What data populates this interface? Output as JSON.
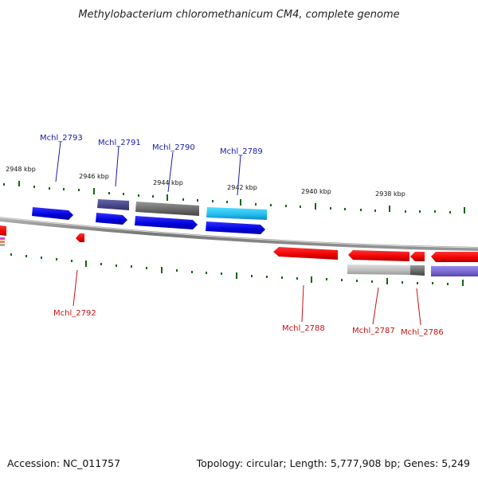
{
  "title": "Methylobacterium chloromethanicum CM4, complete genome",
  "accession": "Accession: NC_011757",
  "summary": "Topology: circular; Length: 5,777,908 bp; Genes: 5,249",
  "colors": {
    "forward_label": "#1a1aaa",
    "reverse_label": "#cc1111",
    "blue_gene": "#1111ee",
    "red_gene": "#ee1111",
    "slate_gene": "#555599",
    "gray_gene": "#777777",
    "cyan_gene": "#22bbee",
    "light_gray_gene": "#bbbbbb",
    "lavender_gene": "#7766cc",
    "backbone": "#888888",
    "tick": "#116611"
  },
  "ticks": [
    "2948 kbp",
    "2946 kbp",
    "2944 kbp",
    "2942 kbp",
    "2940 kbp",
    "2938 kbp"
  ],
  "forward_genes": [
    "Mchl_2793",
    "Mchl_2791",
    "Mchl_2790",
    "Mchl_2789"
  ],
  "reverse_genes": [
    "Mchl_2792",
    "Mchl_2788",
    "Mchl_2787",
    "Mchl_2786"
  ]
}
